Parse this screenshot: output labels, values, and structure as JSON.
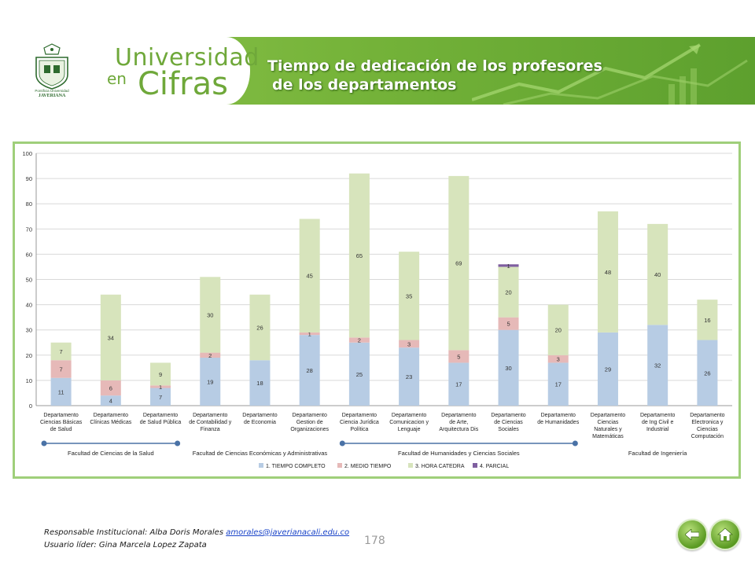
{
  "header": {
    "university_lines": [
      "Pontificia Universidad",
      "JAVERIANA"
    ],
    "brand_line1": "Universidad",
    "brand_line2a": "en",
    "brand_line2b": "Cifras",
    "title_line1": "Tiempo de dedicación de los profesores",
    "title_line2": "de los departamentos"
  },
  "colors": {
    "tiempo_completo": "#b7cce4",
    "medio_tiempo": "#e6b9b8",
    "hora_catedra": "#d7e4bc",
    "parcial": "#7f5fa0",
    "banner_green": "#76b43a"
  },
  "chart_data": {
    "type": "bar",
    "stacked": true,
    "ylim": [
      0,
      100
    ],
    "yticks": [
      0,
      10,
      20,
      30,
      40,
      50,
      60,
      70,
      80,
      90,
      100
    ],
    "grid": true,
    "legend_position": "bottom",
    "categories": [
      [
        "Departamento",
        "Ciencias Básicas",
        "de Salud"
      ],
      [
        "Departamento",
        "Clínicas Médicas"
      ],
      [
        "Departamento",
        "de Salud Pública"
      ],
      [
        "Departamento",
        "de Contabilidad y",
        "Finanza"
      ],
      [
        "Departamento",
        "de Economia"
      ],
      [
        "Departamento",
        "Gestion de",
        "Organizaciones"
      ],
      [
        "Departamento",
        "Ciencia Jurídica",
        "Política"
      ],
      [
        "Departamento",
        "Comunicacion y",
        "Lenguaje"
      ],
      [
        "Departamento",
        "de Arte,",
        "Arquitectura Dis"
      ],
      [
        "Departamento",
        "de Ciencias",
        "Sociales"
      ],
      [
        "Departamento",
        "de Humanidades"
      ],
      [
        "Departamento",
        "Ciencias",
        "Naturales y",
        "Matemáticas"
      ],
      [
        "Departamento",
        "de Ing Civil e",
        "Industrial"
      ],
      [
        "Departamento",
        "Electronica y",
        "Ciencias",
        "Computación"
      ]
    ],
    "series": [
      {
        "name": "1. TIEMPO COMPLETO",
        "values": [
          11,
          4,
          7,
          19,
          18,
          28,
          25,
          23,
          17,
          30,
          17,
          29,
          32,
          26
        ]
      },
      {
        "name": "2. MEDIO TIEMPO",
        "values": [
          7,
          6,
          1,
          2,
          0,
          1,
          2,
          3,
          5,
          5,
          3,
          0,
          0,
          0
        ]
      },
      {
        "name": "3. HORA CATEDRA",
        "values": [
          7,
          34,
          9,
          30,
          26,
          45,
          65,
          35,
          69,
          20,
          20,
          48,
          40,
          16
        ]
      },
      {
        "name": "4. PARCIAL",
        "values": [
          0,
          0,
          0,
          0,
          0,
          0,
          0,
          0,
          0,
          1,
          0,
          0,
          0,
          0
        ]
      }
    ],
    "faculties": [
      {
        "label": "Facultad de Ciencias de la Salud",
        "from": 0,
        "to": 2,
        "bracket": true
      },
      {
        "label": "Facultad de Ciencias Económicas y Administrativas",
        "from": 3,
        "to": 5,
        "bracket": false
      },
      {
        "label": "Facultad de Humanidades y Ciencias Sociales",
        "from": 6,
        "to": 10,
        "bracket": true
      },
      {
        "label": "Facultad de Ingeniería",
        "from": 11,
        "to": 13,
        "bracket": false
      }
    ]
  },
  "footer": {
    "responsable_label": "Responsable Institucional: Alba Doris Morales",
    "email": "amorales@javerianacali.edu.co",
    "usuario_label": "Usuario líder: Gina Marcela Lopez Zapata",
    "page_number": "178"
  }
}
